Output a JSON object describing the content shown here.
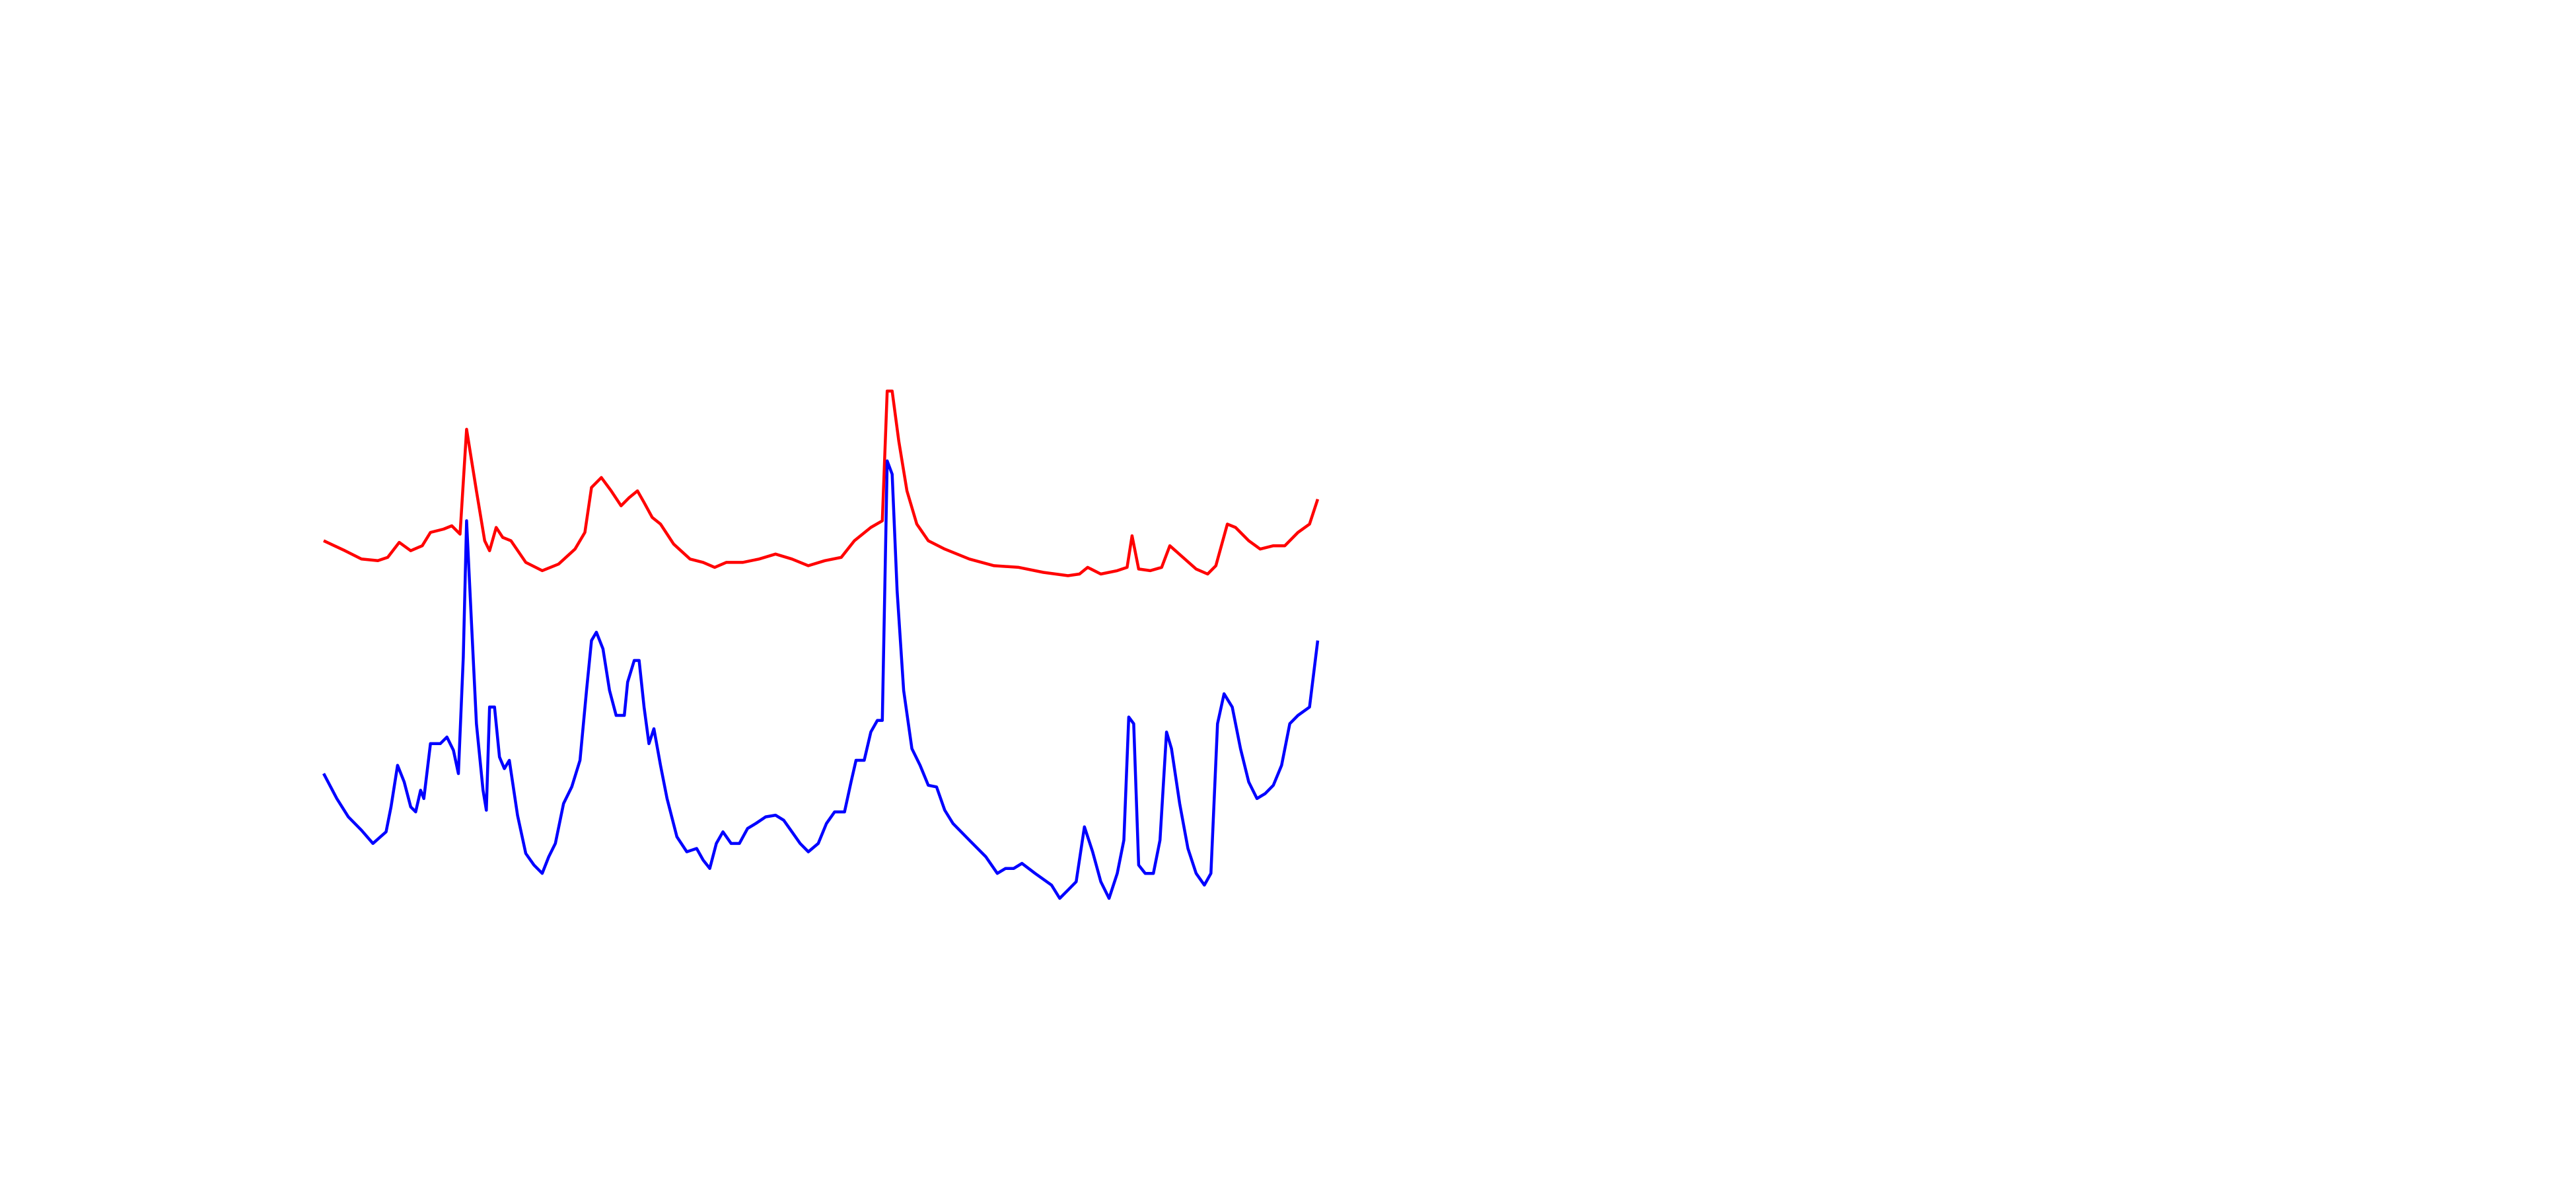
{
  "chart_data": {
    "type": "line",
    "series": [
      {
        "color": "#ff0000",
        "x": [
          197,
          210,
          220,
          230,
          236,
          243,
          250,
          257,
          262,
          270,
          275,
          280,
          284,
          290,
          295,
          298,
          302,
          306,
          311,
          320,
          330,
          340,
          350,
          356,
          360,
          366,
          372,
          378,
          383,
          388,
          392,
          397,
          402,
          410,
          420,
          428,
          435,
          442,
          452,
          462,
          472,
          482,
          492,
          502,
          512,
          520,
          530,
          537,
          540,
          543,
          547,
          552,
          558,
          565,
          575,
          590,
          605,
          620,
          635,
          650,
          657,
          662,
          670,
          680,
          686,
          689,
          693,
          700,
          707,
          712,
          720,
          728,
          735,
          740,
          747,
          752,
          760,
          767,
          775,
          782,
          790,
          797,
          802
        ],
        "values": [
          390,
          384,
          379,
          378,
          380,
          389,
          384,
          387,
          395,
          397,
          399,
          394,
          457,
          420,
          390,
          384,
          398,
          392,
          390,
          377,
          372,
          376,
          385,
          395,
          422,
          428,
          420,
          411,
          416,
          420,
          413,
          404,
          400,
          388,
          379,
          377,
          374,
          377,
          377,
          379,
          382,
          379,
          375,
          378,
          380,
          390,
          398,
          402,
          480,
          480,
          450,
          420,
          400,
          390,
          385,
          379,
          375,
          374,
          371,
          369,
          370,
          374,
          370,
          372,
          374,
          393,
          373,
          372,
          374,
          387,
          380,
          373,
          370,
          375,
          400,
          398,
          390,
          385,
          387,
          387,
          395,
          400,
          415
        ]
      },
      {
        "color": "#0000ff",
        "x": [
          197,
          205,
          212,
          220,
          227,
          235,
          238,
          242,
          246,
          250,
          253,
          256,
          258,
          262,
          268,
          272,
          276,
          279,
          282,
          284,
          287,
          290,
          294,
          296,
          298,
          301,
          304,
          307,
          310,
          315,
          320,
          325,
          330,
          334,
          338,
          343,
          348,
          353,
          357,
          360,
          363,
          367,
          371,
          375,
          380,
          382,
          386,
          389,
          392,
          395,
          398,
          402,
          406,
          412,
          418,
          424,
          428,
          432,
          436,
          440,
          445,
          450,
          455,
          460,
          466,
          472,
          477,
          482,
          487,
          492,
          498,
          503,
          508,
          514,
          518,
          521,
          526,
          530,
          534,
          537,
          540,
          543,
          546,
          550,
          555,
          560,
          565,
          570,
          575,
          580,
          590,
          600,
          607,
          612,
          617,
          622,
          630,
          640,
          645,
          650,
          655,
          660,
          665,
          670,
          675,
          680,
          684,
          687,
          690,
          693,
          697,
          702,
          706,
          710,
          713,
          718,
          723,
          728,
          733,
          737,
          741,
          745,
          750,
          755,
          760,
          765,
          770,
          775,
          780,
          785,
          790,
          797,
          802
        ],
        "values": [
          250,
          235,
          224,
          216,
          208,
          215,
          230,
          255,
          245,
          230,
          227,
          240,
          235,
          268,
          268,
          272,
          264,
          250,
          320,
          402,
          340,
          280,
          240,
          228,
          290,
          290,
          260,
          253,
          258,
          225,
          202,
          195,
          190,
          200,
          208,
          232,
          242,
          258,
          300,
          330,
          335,
          325,
          300,
          285,
          285,
          305,
          318,
          318,
          290,
          268,
          277,
          255,
          235,
          212,
          203,
          205,
          198,
          193,
          208,
          215,
          208,
          208,
          217,
          220,
          224,
          225,
          222,
          215,
          208,
          203,
          208,
          220,
          227,
          227,
          245,
          258,
          258,
          275,
          282,
          282,
          438,
          430,
          360,
          300,
          265,
          255,
          243,
          242,
          228,
          220,
          210,
          200,
          190,
          193,
          193,
          196,
          190,
          183,
          175,
          180,
          185,
          218,
          203,
          185,
          175,
          190,
          210,
          284,
          280,
          195,
          190,
          190,
          210,
          275,
          265,
          232,
          205,
          190,
          183,
          190,
          280,
          298,
          290,
          265,
          245,
          235,
          238,
          243,
          255,
          280,
          285,
          290,
          330
        ]
      }
    ]
  }
}
